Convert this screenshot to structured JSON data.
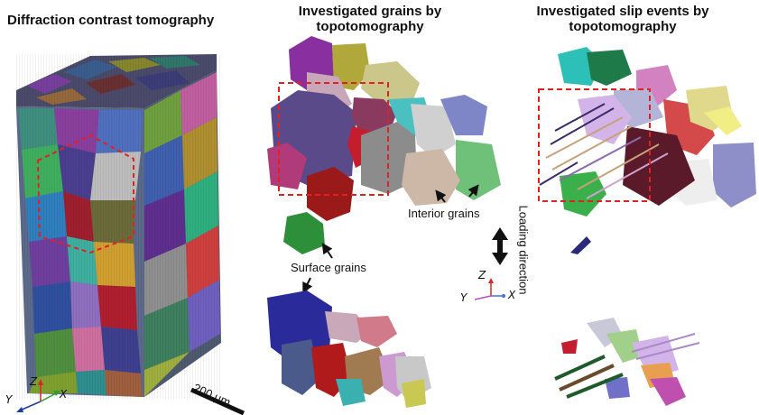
{
  "titles": {
    "dct": "Diffraction contrast tomography",
    "grains": "Investigated grains by topotomography",
    "slip": "Investigated slip events by topotomography"
  },
  "labels": {
    "interior_grains": "Interior grains",
    "surface_grains": "Surface grains",
    "loading_direction": "Loading direction",
    "scale_bar": "200 μm"
  },
  "axes": {
    "left": {
      "z": "Z",
      "y": "Y",
      "x": "X"
    },
    "center": {
      "z": "Z",
      "y": "Y",
      "x": "X"
    }
  },
  "colors": {
    "highlight_box": "#e32020",
    "axis_z": "#d62728",
    "axis_y": "#1f3c9e",
    "axis_x": "#2ca02c",
    "axis_y_center": "#b54fc0",
    "axis_x_center": "#4a6fd6"
  }
}
